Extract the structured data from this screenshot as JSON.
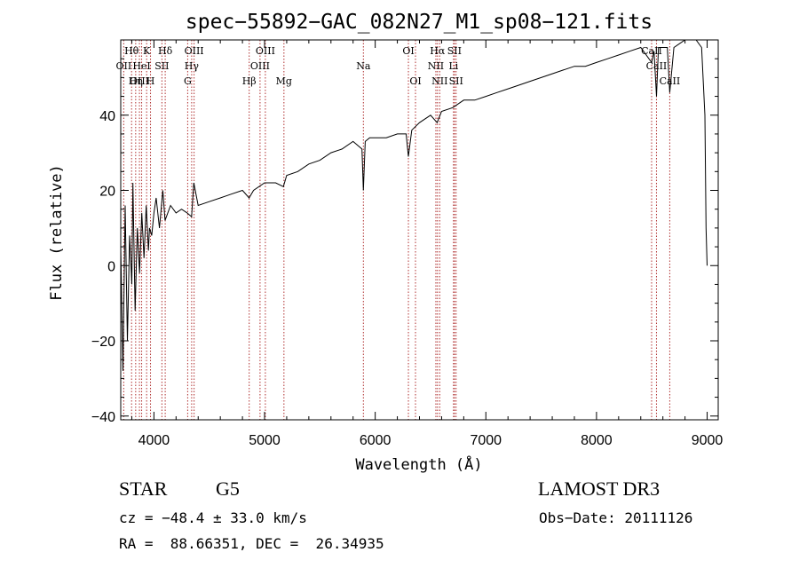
{
  "chart_data": {
    "type": "line",
    "title": "spec−55892−GAC_082N27_M1_sp08−121.fits",
    "xlabel": "Wavelength (Å)",
    "ylabel": "Flux (relative)",
    "xlim": [
      3700,
      9100
    ],
    "ylim": [
      -41,
      60
    ],
    "x_ticks": [
      4000,
      5000,
      6000,
      7000,
      8000,
      9000
    ],
    "y_ticks": [
      -40,
      -20,
      0,
      20,
      40
    ],
    "y_tick_labels": [
      "−40",
      "−20",
      "0",
      "20",
      "40"
    ],
    "grid": false,
    "series": [
      {
        "name": "flux",
        "points": [
          [
            3700,
            5
          ],
          [
            3720,
            -28
          ],
          [
            3740,
            16
          ],
          [
            3760,
            -20
          ],
          [
            3780,
            8
          ],
          [
            3800,
            -5
          ],
          [
            3810,
            22
          ],
          [
            3830,
            -12
          ],
          [
            3850,
            10
          ],
          [
            3870,
            -2
          ],
          [
            3890,
            14
          ],
          [
            3910,
            2
          ],
          [
            3930,
            16
          ],
          [
            3950,
            4
          ],
          [
            3960,
            10
          ],
          [
            3980,
            8
          ],
          [
            4000,
            14
          ],
          [
            4020,
            18
          ],
          [
            4050,
            10
          ],
          [
            4080,
            20
          ],
          [
            4100,
            12
          ],
          [
            4150,
            16
          ],
          [
            4200,
            14
          ],
          [
            4250,
            15
          ],
          [
            4300,
            14
          ],
          [
            4340,
            13
          ],
          [
            4360,
            22
          ],
          [
            4400,
            16
          ],
          [
            4500,
            17
          ],
          [
            4600,
            18
          ],
          [
            4700,
            19
          ],
          [
            4800,
            20
          ],
          [
            4860,
            18
          ],
          [
            4900,
            20
          ],
          [
            5000,
            22
          ],
          [
            5100,
            22
          ],
          [
            5170,
            21
          ],
          [
            5200,
            24
          ],
          [
            5300,
            25
          ],
          [
            5400,
            27
          ],
          [
            5500,
            28
          ],
          [
            5600,
            30
          ],
          [
            5700,
            31
          ],
          [
            5800,
            33
          ],
          [
            5880,
            31
          ],
          [
            5893,
            20
          ],
          [
            5910,
            33
          ],
          [
            5950,
            34
          ],
          [
            6000,
            34
          ],
          [
            6100,
            34
          ],
          [
            6200,
            35
          ],
          [
            6280,
            35
          ],
          [
            6300,
            29
          ],
          [
            6330,
            36
          ],
          [
            6400,
            38
          ],
          [
            6500,
            40
          ],
          [
            6560,
            38
          ],
          [
            6600,
            41
          ],
          [
            6700,
            42
          ],
          [
            6800,
            44
          ],
          [
            6900,
            44
          ],
          [
            7000,
            45
          ],
          [
            7100,
            46
          ],
          [
            7200,
            47
          ],
          [
            7300,
            48
          ],
          [
            7400,
            49
          ],
          [
            7500,
            50
          ],
          [
            7600,
            51
          ],
          [
            7700,
            52
          ],
          [
            7800,
            53
          ],
          [
            7900,
            53
          ],
          [
            8000,
            54
          ],
          [
            8100,
            55
          ],
          [
            8200,
            56
          ],
          [
            8300,
            57
          ],
          [
            8400,
            58
          ],
          [
            8498,
            54
          ],
          [
            8520,
            57
          ],
          [
            8542,
            45
          ],
          [
            8560,
            58
          ],
          [
            8640,
            58
          ],
          [
            8662,
            46
          ],
          [
            8700,
            58
          ],
          [
            8800,
            60
          ],
          [
            8900,
            60
          ],
          [
            8950,
            58
          ],
          [
            8980,
            40
          ],
          [
            8990,
            10
          ],
          [
            9000,
            0
          ]
        ]
      }
    ],
    "line_markers": [
      {
        "label": "Hθ",
        "wavelength": 3798,
        "row": 1
      },
      {
        "label": "OII",
        "wavelength": 3727,
        "row": 2
      },
      {
        "label": "OIII",
        "wavelength": 3869,
        "row": 3
      },
      {
        "label": "Hη",
        "wavelength": 3835,
        "row": 3
      },
      {
        "label": "HeI",
        "wavelength": 3889,
        "row": 2
      },
      {
        "label": "K",
        "wavelength": 3934,
        "row": 1
      },
      {
        "label": "H",
        "wavelength": 3969,
        "row": 3
      },
      {
        "label": "SII",
        "wavelength": 4072,
        "row": 2
      },
      {
        "label": "Hδ",
        "wavelength": 4102,
        "row": 1
      },
      {
        "label": "OIII",
        "wavelength": 4363,
        "row": 1
      },
      {
        "label": "Hγ",
        "wavelength": 4341,
        "row": 2
      },
      {
        "label": "G",
        "wavelength": 4305,
        "row": 3
      },
      {
        "label": "Hβ",
        "wavelength": 4861,
        "row": 3
      },
      {
        "label": "OIII",
        "wavelength": 4959,
        "row": 2
      },
      {
        "label": "OIII",
        "wavelength": 5007,
        "row": 1
      },
      {
        "label": "Mg",
        "wavelength": 5175,
        "row": 3
      },
      {
        "label": "Na",
        "wavelength": 5893,
        "row": 2
      },
      {
        "label": "OI",
        "wavelength": 6300,
        "row": 1
      },
      {
        "label": "OI",
        "wavelength": 6364,
        "row": 3
      },
      {
        "label": "NII",
        "wavelength": 6548,
        "row": 2
      },
      {
        "label": "Hα",
        "wavelength": 6563,
        "row": 1
      },
      {
        "label": "NII",
        "wavelength": 6583,
        "row": 3
      },
      {
        "label": "Li",
        "wavelength": 6708,
        "row": 2
      },
      {
        "label": "SII",
        "wavelength": 6716,
        "row": 1
      },
      {
        "label": "SII",
        "wavelength": 6731,
        "row": 3
      },
      {
        "label": "CaII",
        "wavelength": 8498,
        "row": 1
      },
      {
        "label": "CaII",
        "wavelength": 8542,
        "row": 2
      },
      {
        "label": "CaII",
        "wavelength": 8662,
        "row": 3
      }
    ]
  },
  "info": {
    "object_class": "STAR",
    "subclass": "G5",
    "survey": "LAMOST DR3",
    "redshift": "cz = −48.4 ± 33.0 km/s",
    "obs_date": "Obs−Date: 20111126",
    "coords": "RA =  88.66351, DEC =  26.34935"
  },
  "colors": {
    "marker_line": "#b03030",
    "spectrum": "#000000",
    "axis": "#000000"
  }
}
